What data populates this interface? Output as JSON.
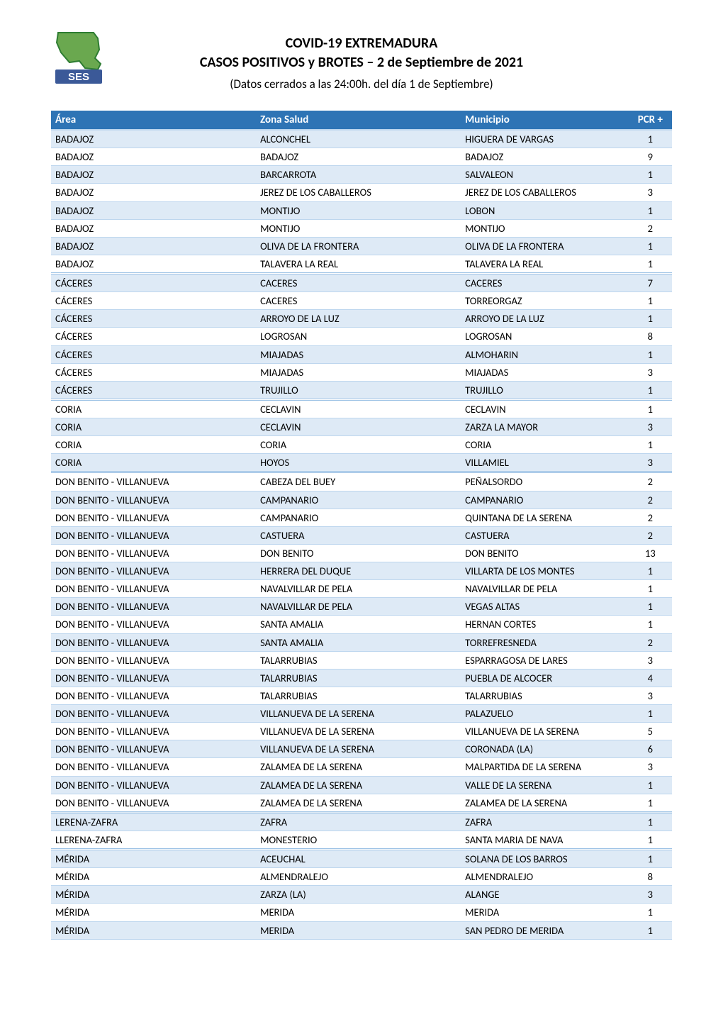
{
  "document": {
    "title_line1": "COVID-19 EXTREMADURA",
    "title_line2": "CASOS POSITIVOS y BROTES – 2 de Septiembre de 2021",
    "subtitle": "(Datos cerrados a las 24:00h. del día 1 de Septiembre)"
  },
  "logo": {
    "text": "SES",
    "map_fill": "#6aa84f",
    "map_stroke": "#2e7d32",
    "bar_fill": "#3b5998",
    "text_color": "#ffffff"
  },
  "style": {
    "header_bg": "#2e74b5",
    "header_text": "#ffffff",
    "row_odd_bg": "#deeaf6",
    "row_even_bg": "#ffffff",
    "row_border": "#bdd6ee",
    "section_border": "#9cc2e5",
    "text_color": "#000000",
    "font_family": "Calibri",
    "header_font_size": 15,
    "body_font_size": 14.5
  },
  "columns": {
    "area": "Área",
    "zona": "Zona Salud",
    "muni": "Municipio",
    "pcr": "PCR +"
  },
  "rows": [
    {
      "area": "BADAJOZ",
      "zona": "ALCONCHEL",
      "muni": "HIGUERA DE VARGAS",
      "pcr": 1,
      "sep": false
    },
    {
      "area": "BADAJOZ",
      "zona": "BADAJOZ",
      "muni": "BADAJOZ",
      "pcr": 9,
      "sep": false
    },
    {
      "area": "BADAJOZ",
      "zona": "BARCARROTA",
      "muni": "SALVALEON",
      "pcr": 1,
      "sep": false
    },
    {
      "area": "BADAJOZ",
      "zona": "JEREZ DE LOS CABALLEROS",
      "muni": "JEREZ DE LOS CABALLEROS",
      "pcr": 3,
      "sep": false
    },
    {
      "area": "BADAJOZ",
      "zona": "MONTIJO",
      "muni": "LOBON",
      "pcr": 1,
      "sep": false
    },
    {
      "area": "BADAJOZ",
      "zona": "MONTIJO",
      "muni": "MONTIJO",
      "pcr": 2,
      "sep": false
    },
    {
      "area": "BADAJOZ",
      "zona": "OLIVA DE LA FRONTERA",
      "muni": "OLIVA DE LA FRONTERA",
      "pcr": 1,
      "sep": false
    },
    {
      "area": "BADAJOZ",
      "zona": "TALAVERA LA REAL",
      "muni": "TALAVERA LA REAL",
      "pcr": 1,
      "sep": true
    },
    {
      "area": "CÁCERES",
      "zona": "CACERES",
      "muni": "CACERES",
      "pcr": 7,
      "sep": false
    },
    {
      "area": "CÁCERES",
      "zona": "CACERES",
      "muni": "TORREORGAZ",
      "pcr": 1,
      "sep": false
    },
    {
      "area": "CÁCERES",
      "zona": "ARROYO DE LA LUZ",
      "muni": "ARROYO DE LA LUZ",
      "pcr": 1,
      "sep": false
    },
    {
      "area": "CÁCERES",
      "zona": "LOGROSAN",
      "muni": "LOGROSAN",
      "pcr": 8,
      "sep": false
    },
    {
      "area": "CÁCERES",
      "zona": "MIAJADAS",
      "muni": "ALMOHARIN",
      "pcr": 1,
      "sep": false
    },
    {
      "area": "CÁCERES",
      "zona": "MIAJADAS",
      "muni": "MIAJADAS",
      "pcr": 3,
      "sep": false
    },
    {
      "area": "CÁCERES",
      "zona": "TRUJILLO",
      "muni": "TRUJILLO",
      "pcr": 1,
      "sep": true
    },
    {
      "area": "CORIA",
      "zona": "CECLAVIN",
      "muni": "CECLAVIN",
      "pcr": 1,
      "sep": false
    },
    {
      "area": "CORIA",
      "zona": "CECLAVIN",
      "muni": "ZARZA LA MAYOR",
      "pcr": 3,
      "sep": false
    },
    {
      "area": "CORIA",
      "zona": "CORIA",
      "muni": "CORIA",
      "pcr": 1,
      "sep": false
    },
    {
      "area": "CORIA",
      "zona": "HOYOS",
      "muni": "VILLAMIEL",
      "pcr": 3,
      "sep": true
    },
    {
      "area": "DON BENITO - VILLANUEVA",
      "zona": "CABEZA DEL BUEY",
      "muni": "PEÑALSORDO",
      "pcr": 2,
      "sep": false
    },
    {
      "area": "DON BENITO - VILLANUEVA",
      "zona": "CAMPANARIO",
      "muni": "CAMPANARIO",
      "pcr": 2,
      "sep": false
    },
    {
      "area": "DON BENITO - VILLANUEVA",
      "zona": "CAMPANARIO",
      "muni": "QUINTANA DE LA SERENA",
      "pcr": 2,
      "sep": false
    },
    {
      "area": "DON BENITO - VILLANUEVA",
      "zona": "CASTUERA",
      "muni": "CASTUERA",
      "pcr": 2,
      "sep": false
    },
    {
      "area": "DON BENITO - VILLANUEVA",
      "zona": "DON BENITO",
      "muni": "DON BENITO",
      "pcr": 13,
      "sep": false
    },
    {
      "area": "DON BENITO - VILLANUEVA",
      "zona": "HERRERA DEL DUQUE",
      "muni": "VILLARTA DE LOS MONTES",
      "pcr": 1,
      "sep": false
    },
    {
      "area": "DON BENITO - VILLANUEVA",
      "zona": "NAVALVILLAR DE PELA",
      "muni": "NAVALVILLAR DE PELA",
      "pcr": 1,
      "sep": false
    },
    {
      "area": "DON BENITO - VILLANUEVA",
      "zona": "NAVALVILLAR DE PELA",
      "muni": "VEGAS ALTAS",
      "pcr": 1,
      "sep": false
    },
    {
      "area": "DON BENITO - VILLANUEVA",
      "zona": "SANTA AMALIA",
      "muni": "HERNAN CORTES",
      "pcr": 1,
      "sep": false
    },
    {
      "area": "DON BENITO - VILLANUEVA",
      "zona": "SANTA AMALIA",
      "muni": "TORREFRESNEDA",
      "pcr": 2,
      "sep": false
    },
    {
      "area": "DON BENITO - VILLANUEVA",
      "zona": "TALARRUBIAS",
      "muni": "ESPARRAGOSA DE LARES",
      "pcr": 3,
      "sep": false
    },
    {
      "area": "DON BENITO - VILLANUEVA",
      "zona": "TALARRUBIAS",
      "muni": "PUEBLA DE ALCOCER",
      "pcr": 4,
      "sep": false
    },
    {
      "area": "DON BENITO - VILLANUEVA",
      "zona": "TALARRUBIAS",
      "muni": "TALARRUBIAS",
      "pcr": 3,
      "sep": false
    },
    {
      "area": "DON BENITO - VILLANUEVA",
      "zona": "VILLANUEVA DE LA SERENA",
      "muni": "PALAZUELO",
      "pcr": 1,
      "sep": false
    },
    {
      "area": "DON BENITO - VILLANUEVA",
      "zona": "VILLANUEVA DE LA SERENA",
      "muni": "VILLANUEVA DE LA SERENA",
      "pcr": 5,
      "sep": false
    },
    {
      "area": "DON BENITO - VILLANUEVA",
      "zona": "VILLANUEVA DE LA SERENA",
      "muni": "CORONADA (LA)",
      "pcr": 6,
      "sep": false
    },
    {
      "area": "DON BENITO - VILLANUEVA",
      "zona": "ZALAMEA DE LA SERENA",
      "muni": "MALPARTIDA DE LA SERENA",
      "pcr": 3,
      "sep": false
    },
    {
      "area": "DON BENITO - VILLANUEVA",
      "zona": "ZALAMEA DE LA SERENA",
      "muni": "VALLE DE LA SERENA",
      "pcr": 1,
      "sep": false
    },
    {
      "area": "DON BENITO - VILLANUEVA",
      "zona": "ZALAMEA DE LA SERENA",
      "muni": "ZALAMEA DE LA SERENA",
      "pcr": 1,
      "sep": true
    },
    {
      "area": "LERENA-ZAFRA",
      "zona": "ZAFRA",
      "muni": "ZAFRA",
      "pcr": 1,
      "sep": false
    },
    {
      "area": "LLERENA-ZAFRA",
      "zona": "MONESTERIO",
      "muni": "SANTA MARIA DE NAVA",
      "pcr": 1,
      "sep": true
    },
    {
      "area": "MÉRIDA",
      "zona": "ACEUCHAL",
      "muni": "SOLANA DE LOS BARROS",
      "pcr": 1,
      "sep": false
    },
    {
      "area": "MÉRIDA",
      "zona": "ALMENDRALEJO",
      "muni": "ALMENDRALEJO",
      "pcr": 8,
      "sep": false
    },
    {
      "area": "MÉRIDA",
      "zona": "ZARZA (LA)",
      "muni": "ALANGE",
      "pcr": 3,
      "sep": false
    },
    {
      "area": "MÉRIDA",
      "zona": "MERIDA",
      "muni": "MERIDA",
      "pcr": 1,
      "sep": false
    },
    {
      "area": "MÉRIDA",
      "zona": "MERIDA",
      "muni": "SAN PEDRO DE MERIDA",
      "pcr": 1,
      "sep": false
    }
  ]
}
